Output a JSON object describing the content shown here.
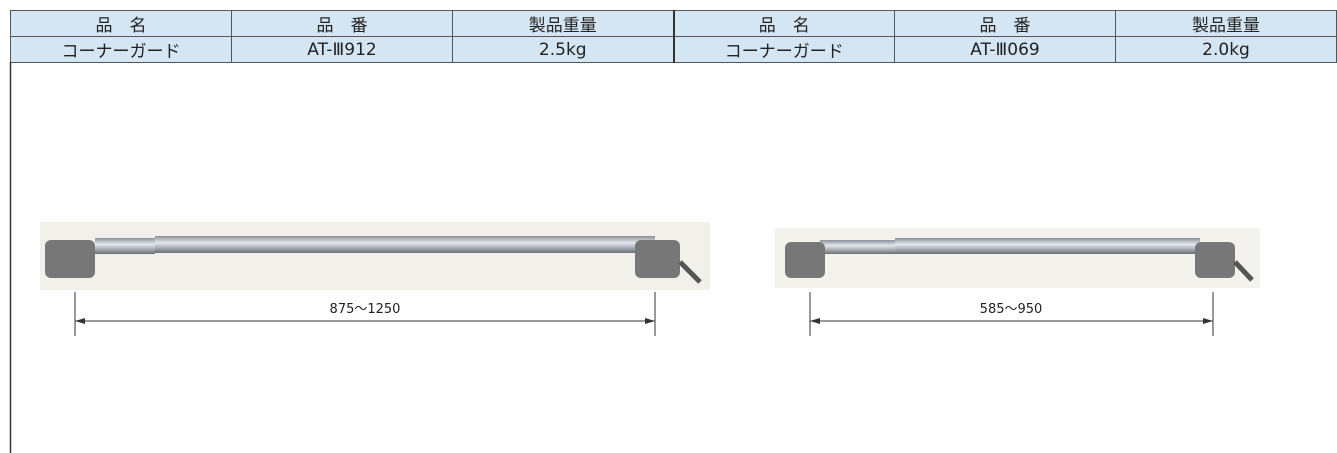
{
  "table": {
    "headers": [
      "品　名",
      "品　番",
      "製品重量",
      "品　名",
      "品　番",
      "製品重量"
    ],
    "rows": [
      [
        "コーナーガード",
        "AT-Ⅲ912",
        "2.5kg",
        "コーナーガード",
        "AT-Ⅲ069",
        "2.0kg"
      ]
    ]
  },
  "figures": [
    {
      "dimension": "875～1250"
    },
    {
      "dimension": "585～950"
    }
  ]
}
